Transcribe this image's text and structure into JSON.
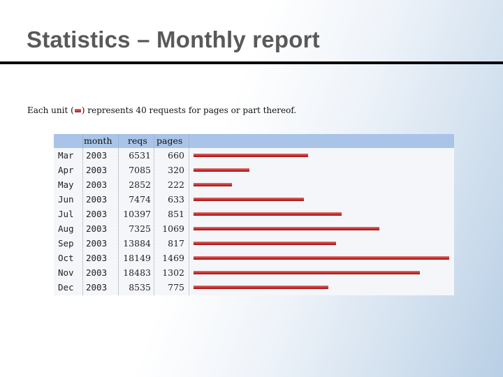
{
  "title": "Statistics – Monthly report",
  "intro": {
    "before": "Each unit (",
    "after": ") represents 40 requests for pages or part thereof."
  },
  "bar_color": "#c22a2a",
  "header_color": "#a9c4e8",
  "chart_data": {
    "type": "bar",
    "orientation": "horizontal",
    "columns": [
      "month",
      "reqs",
      "pages"
    ],
    "categories": [
      "Mar 2003",
      "Apr 2003",
      "May 2003",
      "Jun 2003",
      "Jul 2003",
      "Aug 2003",
      "Sep 2003",
      "Oct 2003",
      "Nov 2003",
      "Dec 2003"
    ],
    "months": [
      "Mar",
      "Apr",
      "May",
      "Jun",
      "Jul",
      "Aug",
      "Sep",
      "Oct",
      "Nov",
      "Dec"
    ],
    "years": [
      "2003",
      "2003",
      "2003",
      "2003",
      "2003",
      "2003",
      "2003",
      "2003",
      "2003",
      "2003"
    ],
    "reqs": [
      "6531",
      "7085",
      "2852",
      "7474",
      "10397",
      "7325",
      "13884",
      "18149",
      "18483",
      "8535"
    ],
    "pages": [
      "660",
      "320",
      "222",
      "633",
      "851",
      "1069",
      "817",
      "1469",
      "1302",
      "775"
    ],
    "bar_values": [
      660,
      320,
      222,
      633,
      851,
      1069,
      817,
      1469,
      1302,
      775
    ],
    "xlim": [
      0,
      1469
    ]
  }
}
